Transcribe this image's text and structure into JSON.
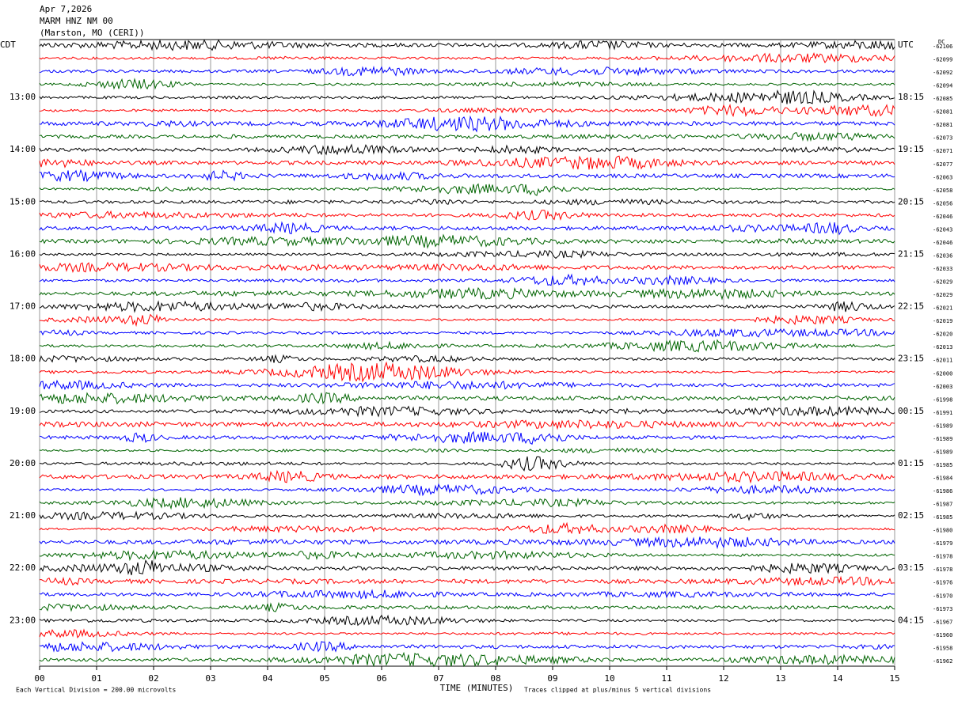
{
  "chart_data": {
    "type": "helicorder",
    "title_lines": [
      "Apr 7,2026",
      "MARM HNZ NM 00",
      "(Marston, MO (CERI))"
    ],
    "xlabel": "TIME (MINUTES)",
    "scale_note": "Each Vertical Division =  200.00 microvolts",
    "clip_note": "Traces clipped at plus/minus 5 vertical divisions",
    "dc_label": "DC",
    "xlim": [
      0,
      15
    ],
    "xticks": [
      {
        "value": 0,
        "label": "00"
      },
      {
        "value": 1,
        "label": "01"
      },
      {
        "value": 2,
        "label": "02"
      },
      {
        "value": 3,
        "label": "03"
      },
      {
        "value": 4,
        "label": "04"
      },
      {
        "value": 5,
        "label": "05"
      },
      {
        "value": 6,
        "label": "06"
      },
      {
        "value": 7,
        "label": "07"
      },
      {
        "value": 8,
        "label": "08"
      },
      {
        "value": 9,
        "label": "09"
      },
      {
        "value": 10,
        "label": "10"
      },
      {
        "value": 11,
        "label": "11"
      },
      {
        "value": 12,
        "label": "12"
      },
      {
        "value": 13,
        "label": "13"
      },
      {
        "value": 14,
        "label": "14"
      },
      {
        "value": 15,
        "label": "15"
      }
    ],
    "grid": true,
    "trace_colors": [
      "#000000",
      "#ff0000",
      "#0000ff",
      "#006400"
    ],
    "cdt_labels": [
      "CDT",
      "13:00",
      "14:00",
      "15:00",
      "16:00",
      "17:00",
      "18:00",
      "19:00",
      "20:00",
      "21:00",
      "22:00",
      "23:00"
    ],
    "utc_labels": [
      "UTC",
      "18:15",
      "19:15",
      "20:15",
      "21:15",
      "22:15",
      "23:15",
      "00:15",
      "01:15",
      "02:15",
      "03:15",
      "04:15"
    ],
    "dc_offsets": [
      -62106,
      -62099,
      -62092,
      -62094,
      -62085,
      -62081,
      -62081,
      -62073,
      -62071,
      -62077,
      -62063,
      -62058,
      -62056,
      -62046,
      -62043,
      -62046,
      -62036,
      -62033,
      -62029,
      -62029,
      -62021,
      -62019,
      -62020,
      -62013,
      -62011,
      -62000,
      -62003,
      -61998,
      -61991,
      -61989,
      -61989,
      -61989,
      -61985,
      -61984,
      -61986,
      -61987,
      -61985,
      -61980,
      -61979,
      -61978,
      -61978,
      -61976,
      -61970,
      -61973,
      -61967,
      -61960,
      -61958,
      -61962
    ]
  }
}
